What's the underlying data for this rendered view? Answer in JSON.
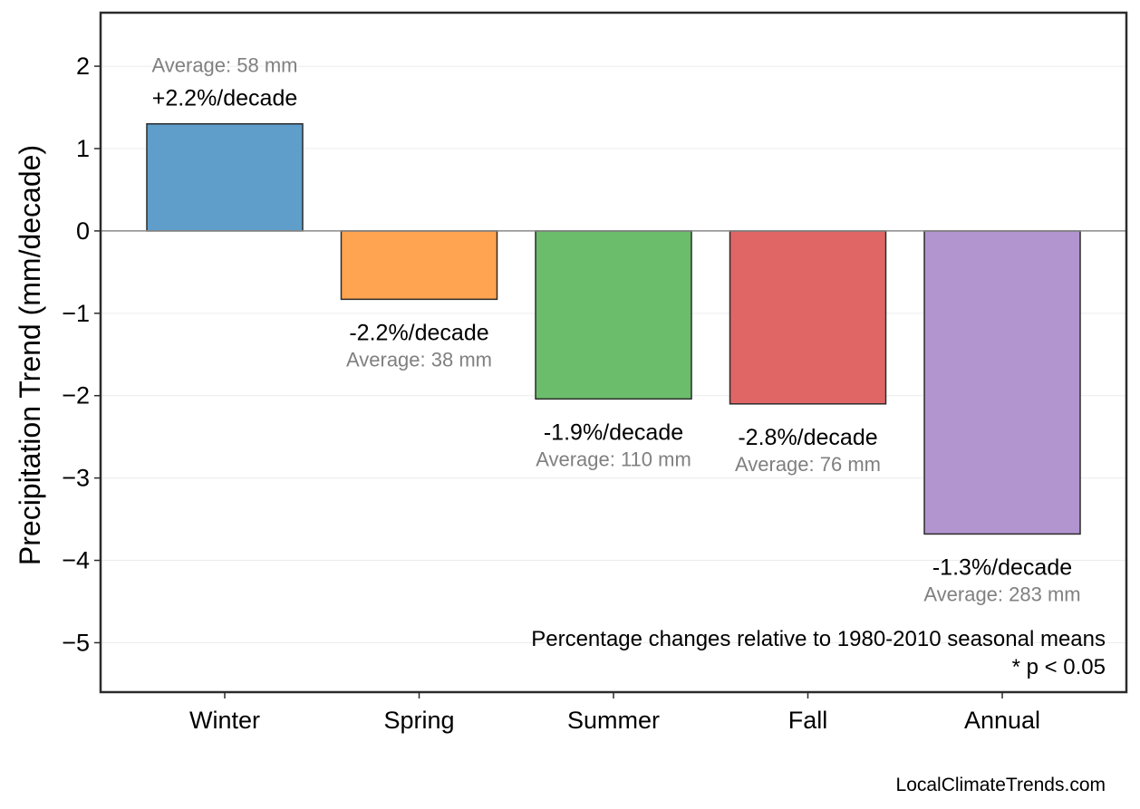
{
  "chart_data": {
    "type": "bar",
    "title": "",
    "xlabel": "",
    "ylabel": "Precipitation Trend (mm/decade)",
    "ylim": [
      -5.6,
      2.65
    ],
    "yticks": [
      2,
      1,
      0,
      -1,
      -2,
      -3,
      -4,
      -5
    ],
    "ytick_labels": [
      "2",
      "1",
      "0",
      "−1",
      "−2",
      "−3",
      "−4",
      "−5"
    ],
    "categories": [
      "Winter",
      "Spring",
      "Summer",
      "Fall",
      "Annual"
    ],
    "values": [
      1.3,
      -0.83,
      -2.04,
      -2.1,
      -3.68
    ],
    "percent_labels": [
      "+2.2%/decade",
      "-2.2%/decade",
      "-1.9%/decade",
      "-2.8%/decade",
      "-1.3%/decade"
    ],
    "average_labels": [
      "Average: 58 mm",
      "Average: 38 mm",
      "Average: 110 mm",
      "Average: 76 mm",
      "Average: 283 mm"
    ],
    "colors": [
      "#5f9ecb",
      "#ffa451",
      "#6bbd6b",
      "#e06666",
      "#b294cf"
    ],
    "grid": true,
    "zero_line": true,
    "note_lines": [
      "Percentage changes relative to 1980-2010 seasonal means",
      "* p < 0.05"
    ],
    "credit": "LocalClimateTrends.com"
  }
}
